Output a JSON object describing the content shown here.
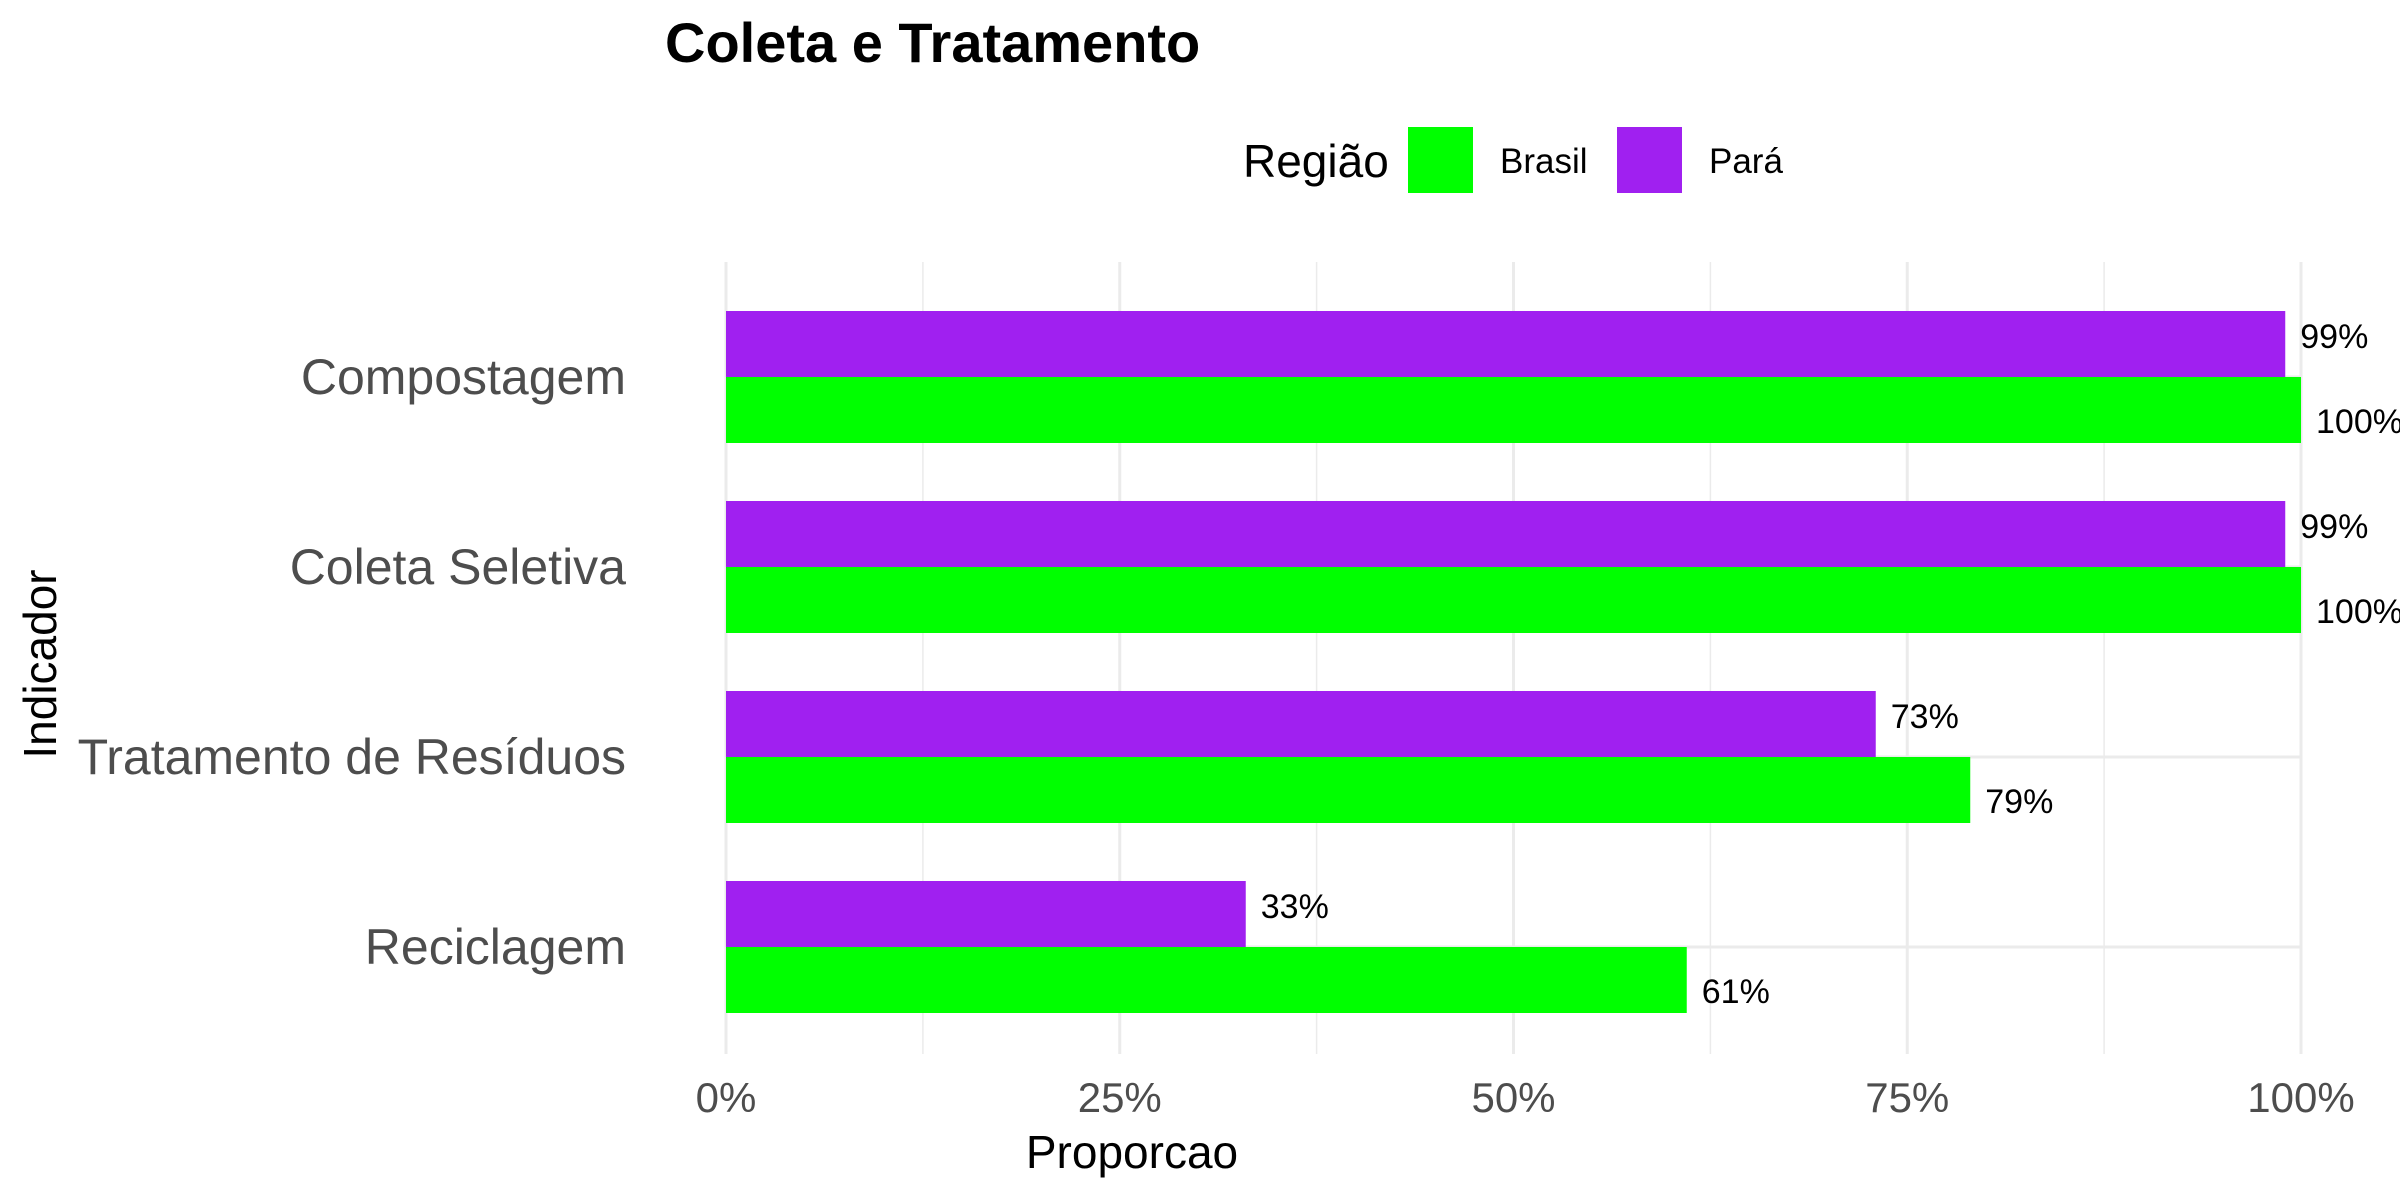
{
  "chart_data": {
    "type": "bar",
    "orientation": "horizontal",
    "title": "Coleta e Tratamento",
    "xlabel": "Proporcao",
    "ylabel": "Indicador",
    "legend_title": "Região",
    "legend_position": "top",
    "categories": [
      "Compostagem",
      "Coleta Seletiva",
      "Tratamento de Resíduos",
      "Reciclagem"
    ],
    "series": [
      {
        "name": "Pará",
        "color": "#a020f0",
        "values": [
          0.99,
          0.99,
          0.73,
          0.33
        ],
        "labels": [
          "99%",
          "99%",
          "73%",
          "33%"
        ]
      },
      {
        "name": "Brasil",
        "color": "#00ff00",
        "values": [
          1.0,
          1.0,
          0.79,
          0.61
        ],
        "labels": [
          "100%",
          "100%",
          "79%",
          "61%"
        ]
      }
    ],
    "legend_order": [
      "Brasil",
      "Pará"
    ],
    "xlim": [
      0,
      1
    ],
    "xticks": [
      0,
      0.25,
      0.5,
      0.75,
      1.0
    ],
    "xtick_labels": [
      "0%",
      "25%",
      "50%",
      "75%",
      "100%"
    ],
    "grid": true
  }
}
